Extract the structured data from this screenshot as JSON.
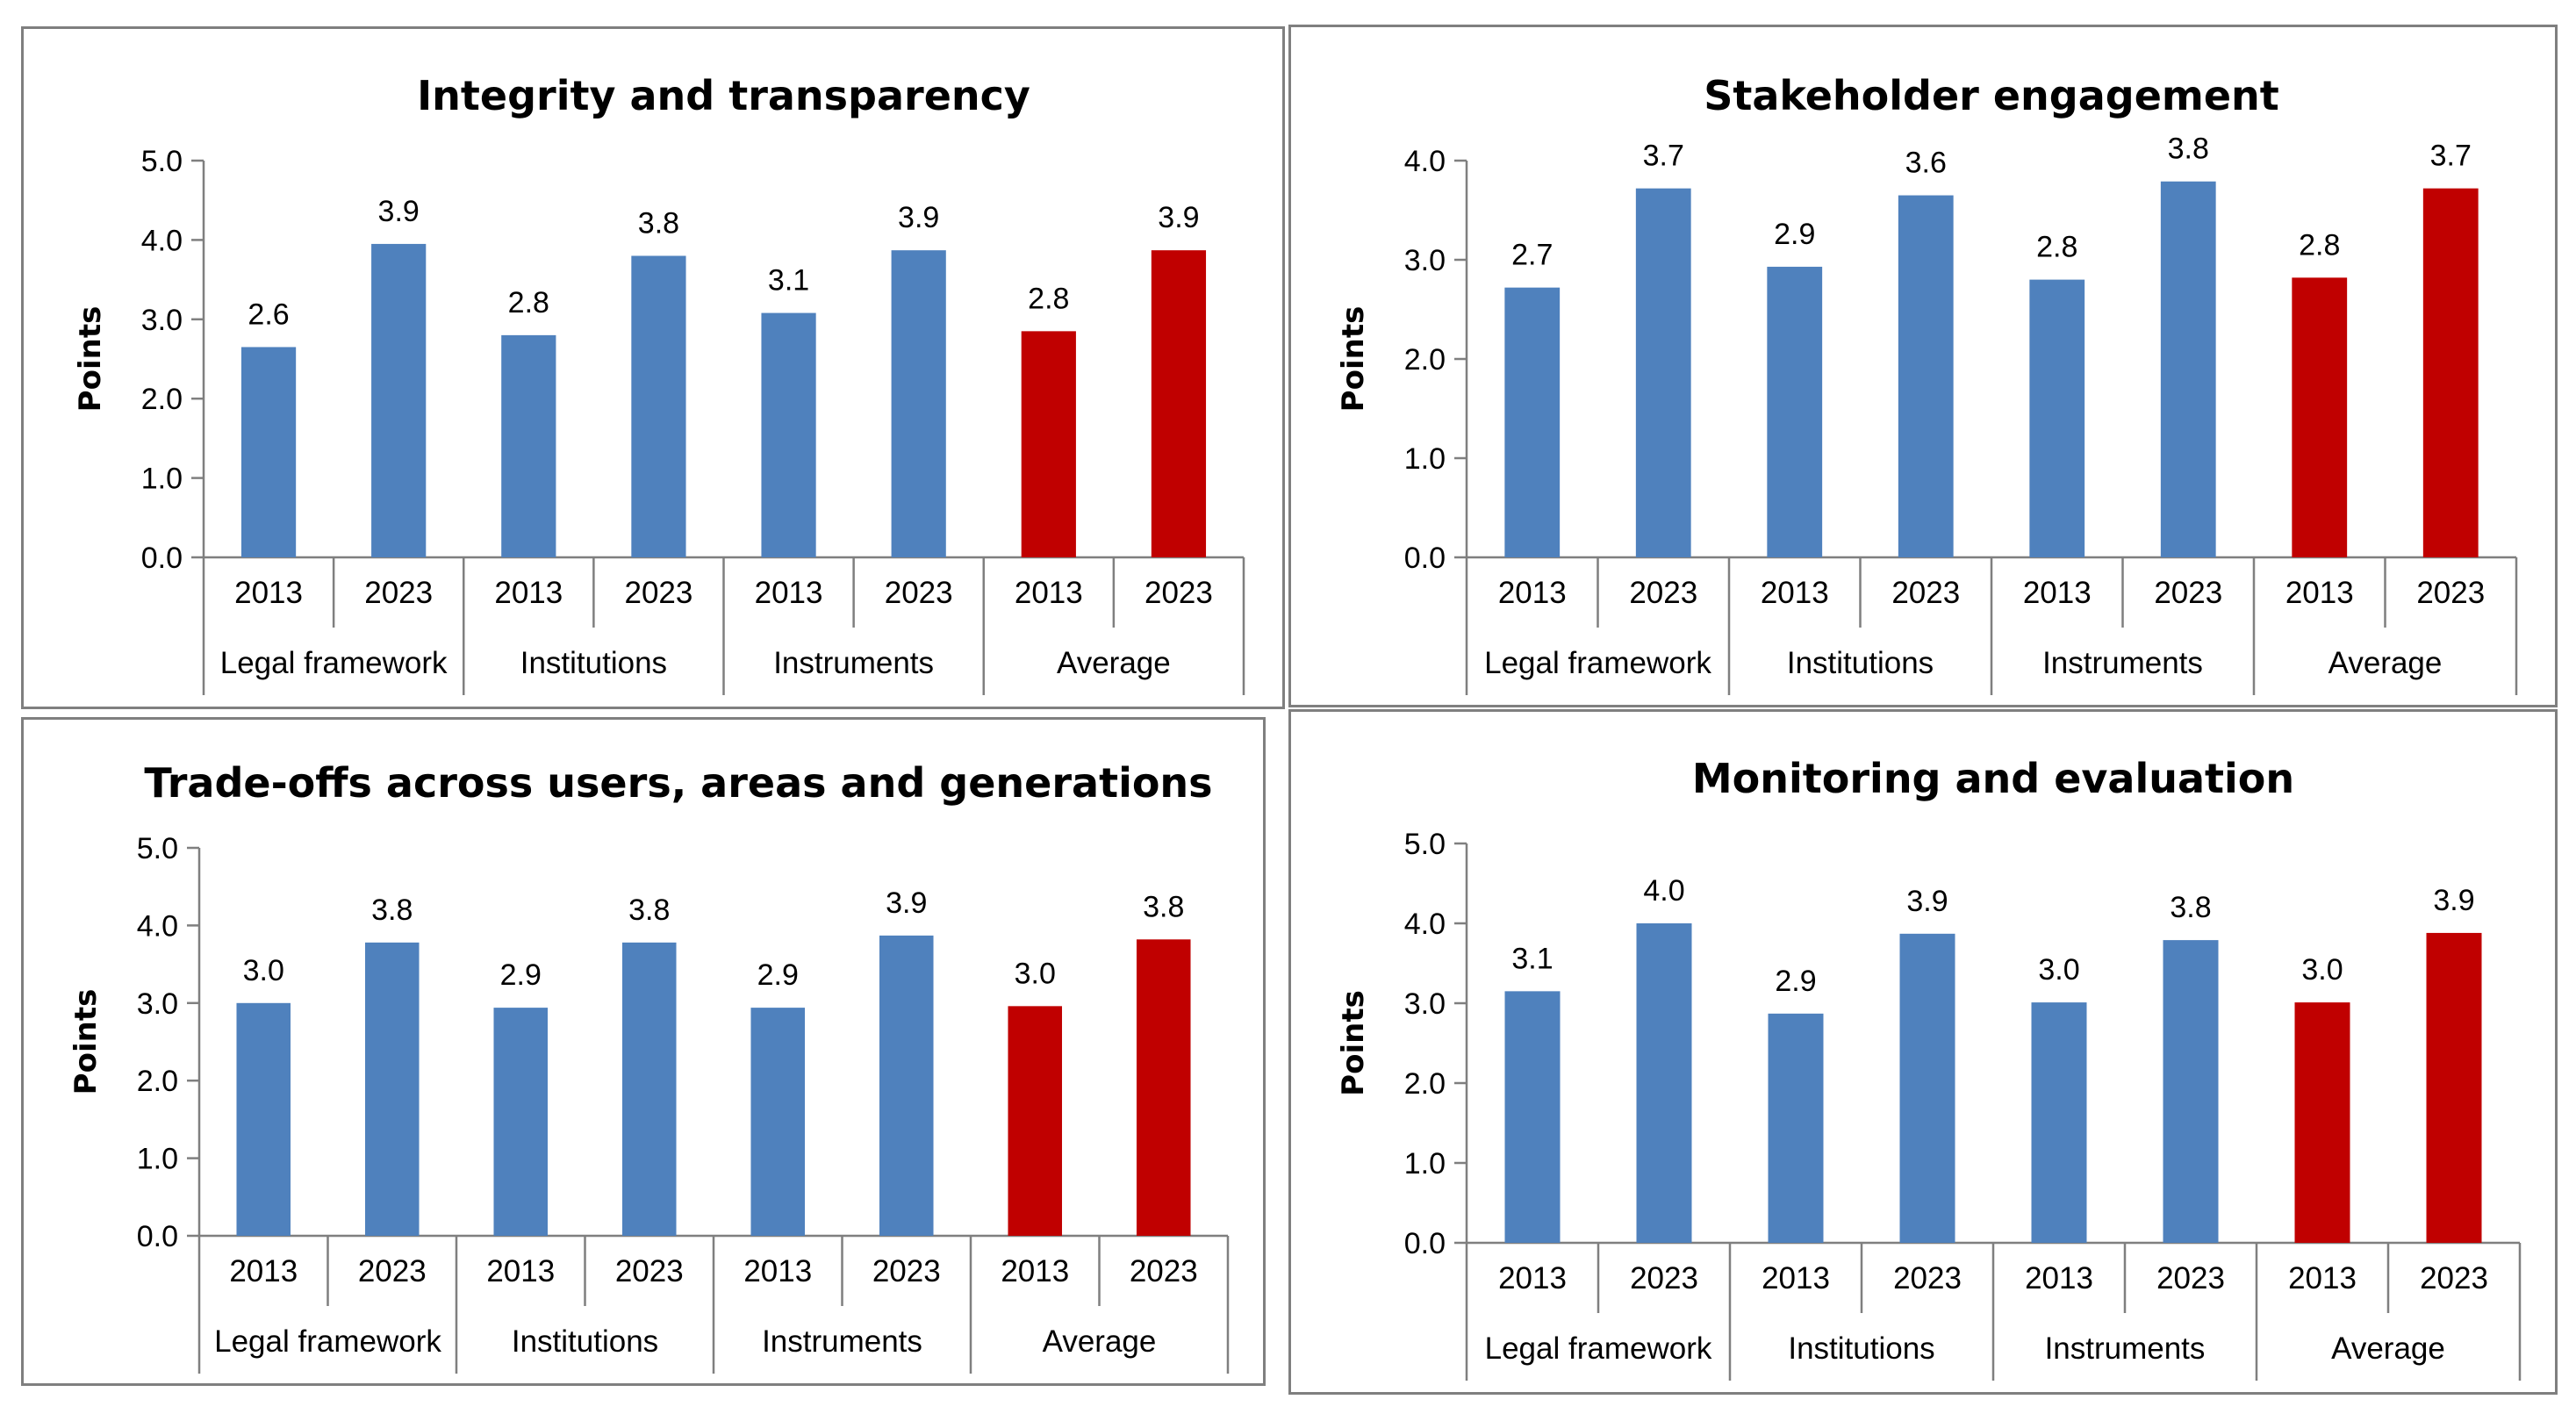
{
  "colors": {
    "blue": "#4F81BD",
    "red": "#C00000",
    "axis": "#7F7F7F",
    "border": "#7F7F7F"
  },
  "chart_data": [
    {
      "type": "bar",
      "title": "Integrity and transparency",
      "ylabel": "Points",
      "ylim": [
        0,
        5
      ],
      "yticks": [
        "0.0",
        "1.0",
        "2.0",
        "3.0",
        "4.0",
        "5.0"
      ],
      "groups": [
        "Legal framework",
        "Institutions",
        "Instruments",
        "Average"
      ],
      "years": [
        "2013",
        "2023"
      ],
      "values": [
        2.65,
        3.95,
        2.8,
        3.8,
        3.08,
        3.87,
        2.85,
        3.87
      ],
      "labels": [
        "2.6",
        "3.9",
        "2.8",
        "3.8",
        "3.1",
        "3.9",
        "2.8",
        "3.9"
      ]
    },
    {
      "type": "bar",
      "title": "Stakeholder engagement",
      "ylabel": "Points",
      "ylim": [
        0,
        4
      ],
      "yticks": [
        "0.0",
        "1.0",
        "2.0",
        "3.0",
        "4.0"
      ],
      "groups": [
        "Legal framework",
        "Institutions",
        "Instruments",
        "Average"
      ],
      "years": [
        "2013",
        "2023"
      ],
      "values": [
        2.72,
        3.72,
        2.93,
        3.65,
        2.8,
        3.79,
        2.82,
        3.72
      ],
      "labels": [
        "2.7",
        "3.7",
        "2.9",
        "3.6",
        "2.8",
        "3.8",
        "2.8",
        "3.7"
      ]
    },
    {
      "type": "bar",
      "title": "Trade-offs across users, areas and generations",
      "ylabel": "Points",
      "ylim": [
        0,
        5
      ],
      "yticks": [
        "0.0",
        "1.0",
        "2.0",
        "3.0",
        "4.0",
        "5.0"
      ],
      "groups": [
        "Legal framework",
        "Institutions",
        "Instruments",
        "Average"
      ],
      "years": [
        "2013",
        "2023"
      ],
      "values": [
        3.0,
        3.78,
        2.94,
        3.78,
        2.94,
        3.87,
        2.96,
        3.82
      ],
      "labels": [
        "3.0",
        "3.8",
        "2.9",
        "3.8",
        "2.9",
        "3.9",
        "3.0",
        "3.8"
      ]
    },
    {
      "type": "bar",
      "title": "Monitoring and evaluation",
      "ylabel": "Points",
      "ylim": [
        0,
        5
      ],
      "yticks": [
        "0.0",
        "1.0",
        "2.0",
        "3.0",
        "4.0",
        "5.0"
      ],
      "groups": [
        "Legal framework",
        "Institutions",
        "Instruments",
        "Average"
      ],
      "years": [
        "2013",
        "2023"
      ],
      "values": [
        3.15,
        4.0,
        2.87,
        3.87,
        3.01,
        3.79,
        3.01,
        3.88
      ],
      "labels": [
        "3.1",
        "4.0",
        "2.9",
        "3.9",
        "3.0",
        "3.8",
        "3.0",
        "3.9"
      ]
    }
  ]
}
